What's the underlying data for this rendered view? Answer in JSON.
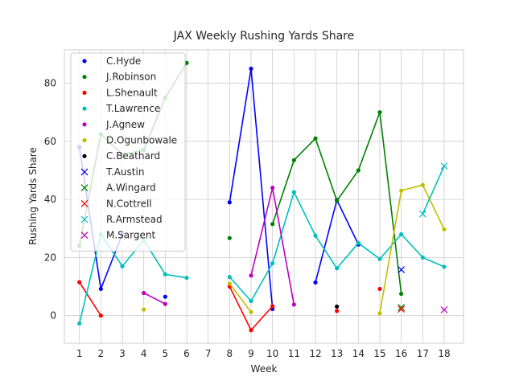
{
  "chart_data": {
    "type": "line",
    "title": "JAX Weekly Rushing Yards Share",
    "xlabel": "Week",
    "ylabel": "Rushing Yards Share",
    "xlim": [
      0.3,
      18.9
    ],
    "ylim": [
      -9.5,
      91.5
    ],
    "x_ticks": [
      1,
      2,
      3,
      4,
      5,
      6,
      7,
      8,
      9,
      10,
      11,
      12,
      13,
      14,
      15,
      16,
      17,
      18
    ],
    "y_ticks": [
      0,
      20,
      40,
      60,
      80
    ],
    "grid": true,
    "legend_position": "top-left",
    "series": [
      {
        "name": "C.Hyde",
        "color": "#0000ff",
        "marker": "dot",
        "points": [
          [
            1,
            58
          ],
          [
            2,
            9.2
          ],
          [
            3,
            28
          ],
          [
            5,
            6.5
          ],
          [
            8,
            39
          ],
          [
            9,
            85
          ],
          [
            10,
            2.3
          ],
          [
            12,
            11.4
          ],
          [
            13,
            39.8
          ],
          [
            14,
            24.5
          ]
        ]
      },
      {
        "name": "J.Robinson",
        "color": "#008000",
        "marker": "dot",
        "points": [
          [
            1,
            24
          ],
          [
            2,
            62.5
          ],
          [
            3,
            55.5
          ],
          [
            4,
            57
          ],
          [
            5,
            75
          ],
          [
            6,
            87
          ],
          [
            8,
            26.7
          ],
          [
            10,
            31.5
          ],
          [
            11,
            53.5
          ],
          [
            12,
            61
          ],
          [
            13,
            39.5
          ],
          [
            14,
            50
          ],
          [
            15,
            70
          ],
          [
            16,
            7.5
          ]
        ]
      },
      {
        "name": "L.Shenault",
        "color": "#ff0000",
        "marker": "dot",
        "points": [
          [
            1,
            11.5
          ],
          [
            2,
            0
          ],
          [
            8,
            10
          ],
          [
            9,
            -5
          ],
          [
            10,
            3.2
          ],
          [
            13,
            1.6
          ],
          [
            15,
            9.2
          ]
        ]
      },
      {
        "name": "T.Lawrence",
        "color": "#00bfbf",
        "marker": "dot",
        "points": [
          [
            1,
            -2.7
          ],
          [
            2,
            28
          ],
          [
            3,
            17
          ],
          [
            4,
            26
          ],
          [
            5,
            14.2
          ],
          [
            6,
            13
          ],
          [
            8,
            13.3
          ],
          [
            9,
            5
          ],
          [
            10,
            18
          ],
          [
            11,
            42.5
          ],
          [
            12,
            27.5
          ],
          [
            13,
            16.3
          ],
          [
            14,
            25
          ],
          [
            15,
            19.5
          ],
          [
            16,
            28
          ],
          [
            17,
            20
          ],
          [
            18,
            16.8
          ]
        ]
      },
      {
        "name": "J.Agnew",
        "color": "#bf00bf",
        "marker": "dot",
        "points": [
          [
            4,
            7.8
          ],
          [
            5,
            4
          ],
          [
            9,
            13.8
          ],
          [
            10,
            44
          ],
          [
            11,
            3.8
          ]
        ]
      },
      {
        "name": "D.Ogunbowale",
        "color": "#bfbf00",
        "marker": "dot",
        "points": [
          [
            4,
            2.1
          ],
          [
            8,
            11
          ],
          [
            9,
            1.2
          ],
          [
            15,
            0.8
          ],
          [
            16,
            43
          ],
          [
            17,
            45
          ],
          [
            18,
            29.7
          ]
        ]
      },
      {
        "name": "C.Beathard",
        "color": "#000000",
        "marker": "dot",
        "points": [
          [
            13,
            3.1
          ]
        ]
      },
      {
        "name": "T.Austin",
        "color": "#0000ff",
        "marker": "x",
        "points": [
          [
            16,
            15.8
          ]
        ]
      },
      {
        "name": "A.Wingard",
        "color": "#008000",
        "marker": "x",
        "points": [
          [
            16,
            2.8
          ]
        ]
      },
      {
        "name": "N.Cottrell",
        "color": "#ff0000",
        "marker": "x",
        "points": [
          [
            16,
            2.2
          ]
        ]
      },
      {
        "name": "R.Armstead",
        "color": "#00bfbf",
        "marker": "x",
        "points": [
          [
            17,
            35
          ],
          [
            18,
            51.5
          ]
        ]
      },
      {
        "name": "M.Sargent",
        "color": "#bf00bf",
        "marker": "x",
        "points": [
          [
            18,
            2
          ]
        ]
      }
    ]
  }
}
